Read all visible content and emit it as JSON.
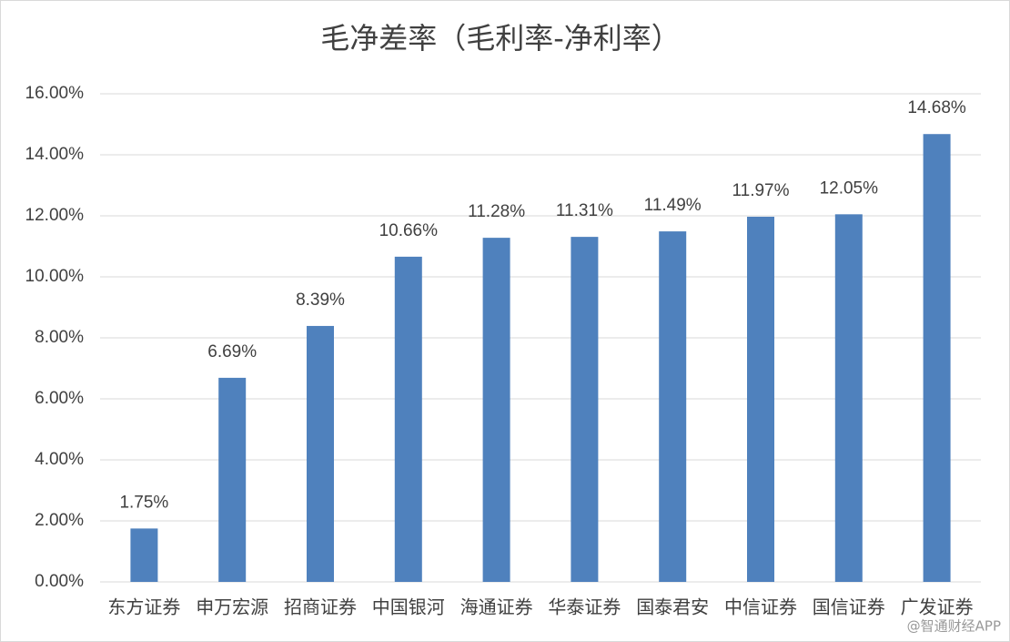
{
  "chart_data": {
    "type": "bar",
    "title": "毛净差率（毛利率-净利率）",
    "categories": [
      "东方证券",
      "申万宏源",
      "招商证券",
      "中国银河",
      "海通证券",
      "华泰证券",
      "国泰君安",
      "中信证券",
      "国信证券",
      "广发证券"
    ],
    "values": [
      1.75,
      6.69,
      8.39,
      10.66,
      11.28,
      11.31,
      11.49,
      11.97,
      12.05,
      14.68
    ],
    "value_labels": [
      "1.75%",
      "6.69%",
      "8.39%",
      "10.66%",
      "11.28%",
      "11.31%",
      "11.49%",
      "11.97%",
      "12.05%",
      "14.68%"
    ],
    "color": "#4f81bd",
    "ylim": [
      0,
      16
    ],
    "yticks": [
      {
        "value": 0,
        "label": "0.00%"
      },
      {
        "value": 2,
        "label": "2.00%"
      },
      {
        "value": 4,
        "label": "4.00%"
      },
      {
        "value": 6,
        "label": "6.00%"
      },
      {
        "value": 8,
        "label": "8.00%"
      },
      {
        "value": 10,
        "label": "10.00%"
      },
      {
        "value": 12,
        "label": "12.00%"
      },
      {
        "value": 14,
        "label": "14.00%"
      },
      {
        "value": 16,
        "label": "16.00%"
      }
    ],
    "grid": true,
    "watermark": "@智通财经APP"
  }
}
